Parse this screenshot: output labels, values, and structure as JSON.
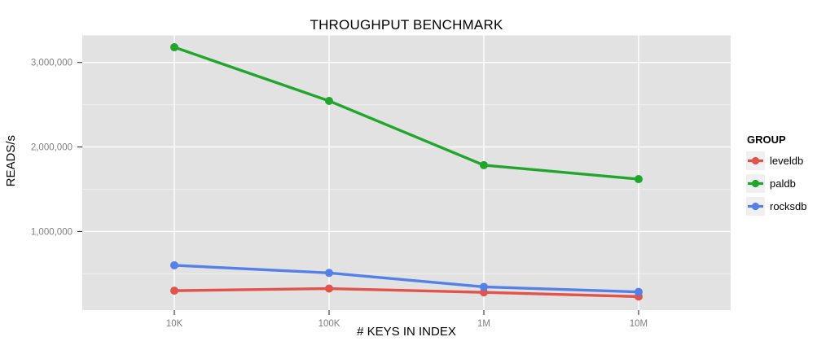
{
  "chart_data": {
    "type": "line",
    "title": "THROUGHPUT BENCHMARK",
    "xlabel": "# KEYS IN INDEX",
    "ylabel": "READS/s",
    "categories": [
      "10K",
      "100K",
      "1M",
      "10M"
    ],
    "series": [
      {
        "name": "leveldb",
        "color": "#E2534B",
        "values": [
          300000,
          325000,
          280000,
          230000
        ]
      },
      {
        "name": "paldb",
        "color": "#22A52D",
        "values": [
          3180000,
          2545000,
          1785000,
          1620000
        ]
      },
      {
        "name": "rocksdb",
        "color": "#5480E8",
        "values": [
          600000,
          510000,
          345000,
          285000
        ]
      }
    ],
    "y_axis": {
      "ticks": [
        {
          "value": 1000000,
          "label": "1,000,000"
        },
        {
          "value": 2000000,
          "label": "2,000,000"
        },
        {
          "value": 3000000,
          "label": "3,000,000"
        }
      ],
      "minor_tick_values": [
        500000,
        1500000,
        2500000
      ],
      "ylim": [
        70000,
        3320000
      ]
    },
    "legend": {
      "title": "GROUP",
      "position": "right"
    },
    "style": {
      "plot_background": "#E2E2E2",
      "major_grid_color": "#FFFFFF",
      "minor_grid_color": "#EFEFEF",
      "axis_tick_color": "#333333",
      "tick_label_color": "#7F7F7F",
      "legend_key_background": "#F0F0F0"
    }
  }
}
